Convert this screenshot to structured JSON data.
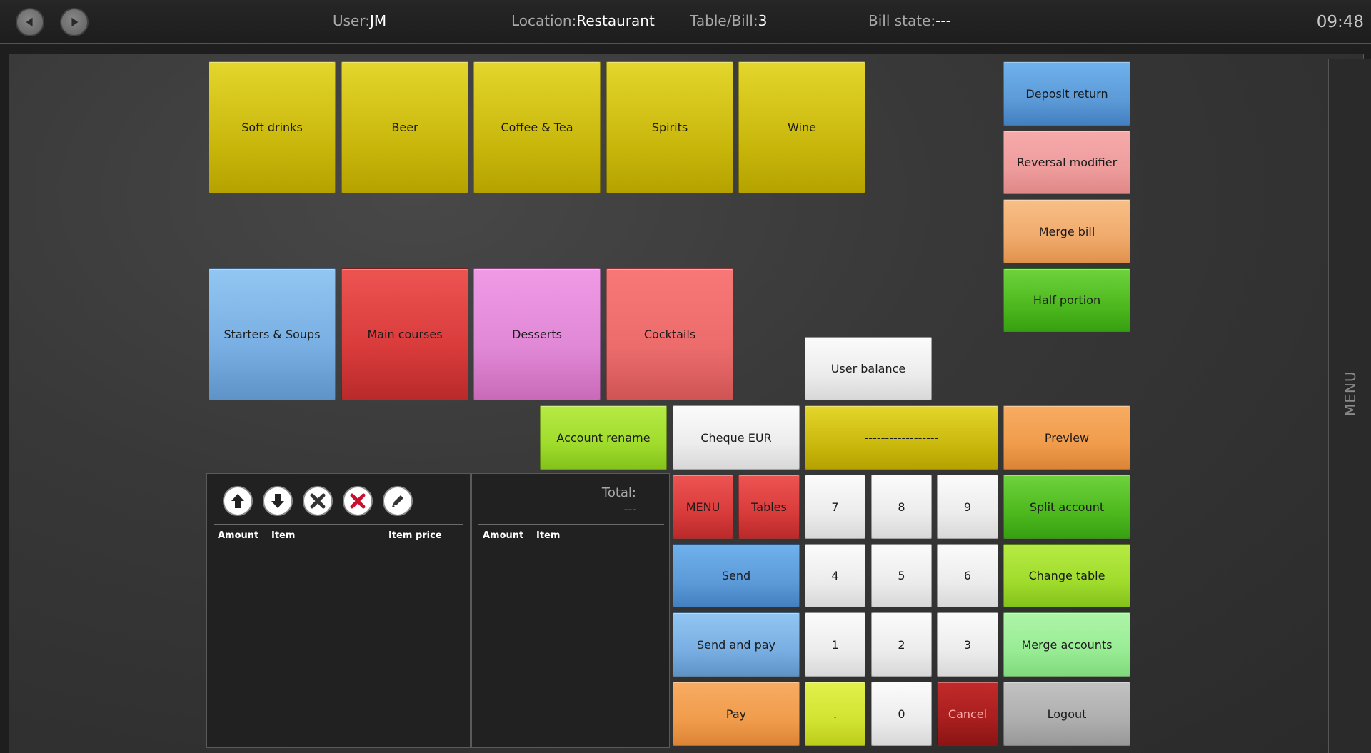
{
  "header": {
    "user_label": "User:",
    "user_value": "JM",
    "location_label": "Location:",
    "location_value": "Restaurant",
    "table_label": "Table/Bill:",
    "table_value": "3",
    "bill_state_label": "Bill state:",
    "bill_state_value": "---",
    "clock": "09:48",
    "back_icon": "back-arrow-icon",
    "forward_icon": "forward-arrow-icon"
  },
  "side_menu": {
    "label": "MENU"
  },
  "categories": {
    "soft_drinks": "Soft drinks",
    "beer": "Beer",
    "coffee_tea": "Coffee & Tea",
    "spirits": "Spirits",
    "wine": "Wine",
    "starters_soups": "Starters & Soups",
    "main_courses": "Main courses",
    "desserts": "Desserts",
    "cocktails": "Cocktails"
  },
  "functions": {
    "deposit_return": "Deposit return",
    "reversal_modifier": "Reversal modifier",
    "merge_bill": "Merge bill",
    "half_portion": "Half portion",
    "user_balance": "User balance",
    "account_rename": "Account rename",
    "cheque_eur": "Cheque EUR",
    "display_field": "------------------",
    "preview": "Preview",
    "menu": "MENU",
    "tables": "Tables",
    "split_account": "Split account",
    "send": "Send",
    "change_table": "Change table",
    "send_and_pay": "Send and pay",
    "merge_accounts": "Merge accounts",
    "pay": "Pay",
    "cancel": "Cancel",
    "logout": "Logout"
  },
  "keypad": {
    "k7": "7",
    "k8": "8",
    "k9": "9",
    "k4": "4",
    "k5": "5",
    "k6": "6",
    "k1": "1",
    "k2": "2",
    "k3": "3",
    "dot": ".",
    "k0": "0"
  },
  "order_panel": {
    "columns": {
      "amount": "Amount",
      "item": "Item",
      "item_price": "Item price"
    },
    "icons": [
      "move-up-icon",
      "move-down-icon",
      "remove-item-icon",
      "delete-all-icon",
      "edit-icon"
    ]
  },
  "sent_panel": {
    "total_label": "Total:",
    "total_value": "---",
    "columns": {
      "amount": "Amount",
      "item": "Item"
    }
  },
  "colors": {
    "category_yellow": "#d9c91e",
    "accent_green": "#4db81e",
    "cancel_red": "#a81e1e"
  }
}
